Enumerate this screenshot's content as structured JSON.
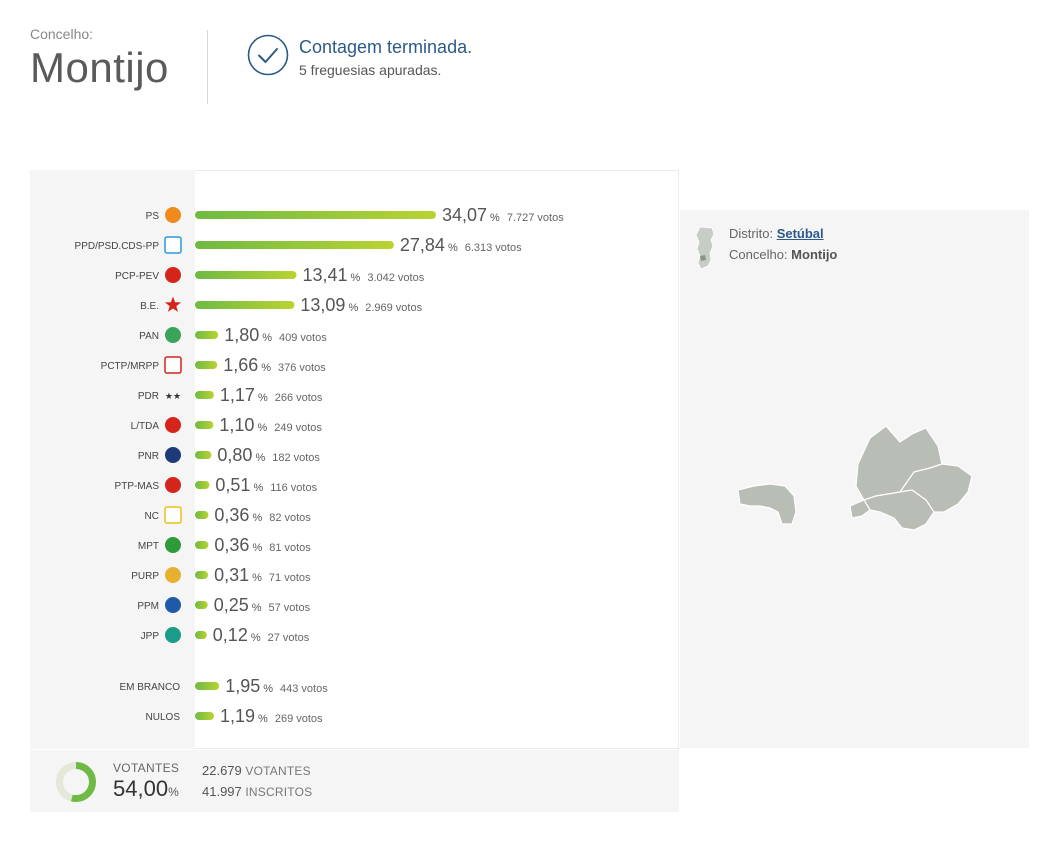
{
  "header": {
    "label": "Concelho:",
    "title": "Montijo",
    "status_title": "Contagem terminada.",
    "status_sub": "5 freguesias apuradas."
  },
  "chart_data": {
    "type": "bar",
    "orientation": "horizontal",
    "categories": [
      "PS",
      "PPD/PSD.CDS-PP",
      "PCP-PEV",
      "B.E.",
      "PAN",
      "PCTP/MRPP",
      "PDR",
      "L/TDA",
      "PNR",
      "PTP-MAS",
      "NC",
      "MPT",
      "PURP",
      "PPM",
      "JPP",
      "EM BRANCO",
      "NULOS"
    ],
    "values": [
      34.07,
      27.84,
      13.41,
      13.09,
      1.8,
      1.66,
      1.17,
      1.1,
      0.8,
      0.51,
      0.36,
      0.36,
      0.31,
      0.25,
      0.12,
      1.95,
      1.19
    ],
    "value_labels": [
      "34,07",
      "27,84",
      "13,41",
      "13,09",
      "1,80",
      "1,66",
      "1,17",
      "1,10",
      "0,80",
      "0,51",
      "0,36",
      "0,36",
      "0,31",
      "0,25",
      "0,12",
      "1,95",
      "1,19"
    ],
    "votes": [
      "7.727 votos",
      "6.313 votos",
      "3.042 votos",
      "2.969 votos",
      "409 votos",
      "376 votos",
      "266 votos",
      "249 votos",
      "182 votos",
      "116 votos",
      "82 votos",
      "81 votos",
      "71 votos",
      "57 votos",
      "27 votos",
      "443 votos",
      "269 votos"
    ],
    "percent_symbol": "%",
    "xlim": [
      0,
      34.07
    ],
    "bar_color_start": "#6fba44",
    "bar_color_end": "#b9d330"
  },
  "summary": {
    "votantes_label": "VOTANTES",
    "votantes_pct": "54,00",
    "votantes_pct_symbol": "%",
    "votantes_fraction": 0.54,
    "votantes_count": "22.679",
    "votantes_unit": "VOTANTES",
    "inscritos_count": "41.997",
    "inscritos_unit": "INSCRITOS"
  },
  "map": {
    "distrito_label": "Distrito:",
    "distrito_value": "Setúbal",
    "concelho_label": "Concelho:",
    "concelho_value": "Montijo"
  },
  "colors": {
    "accent": "#2d5a88",
    "bar_green": "#6fba44",
    "donut_track": "#e3e8d8",
    "map_fill": "#b8bdb6"
  }
}
